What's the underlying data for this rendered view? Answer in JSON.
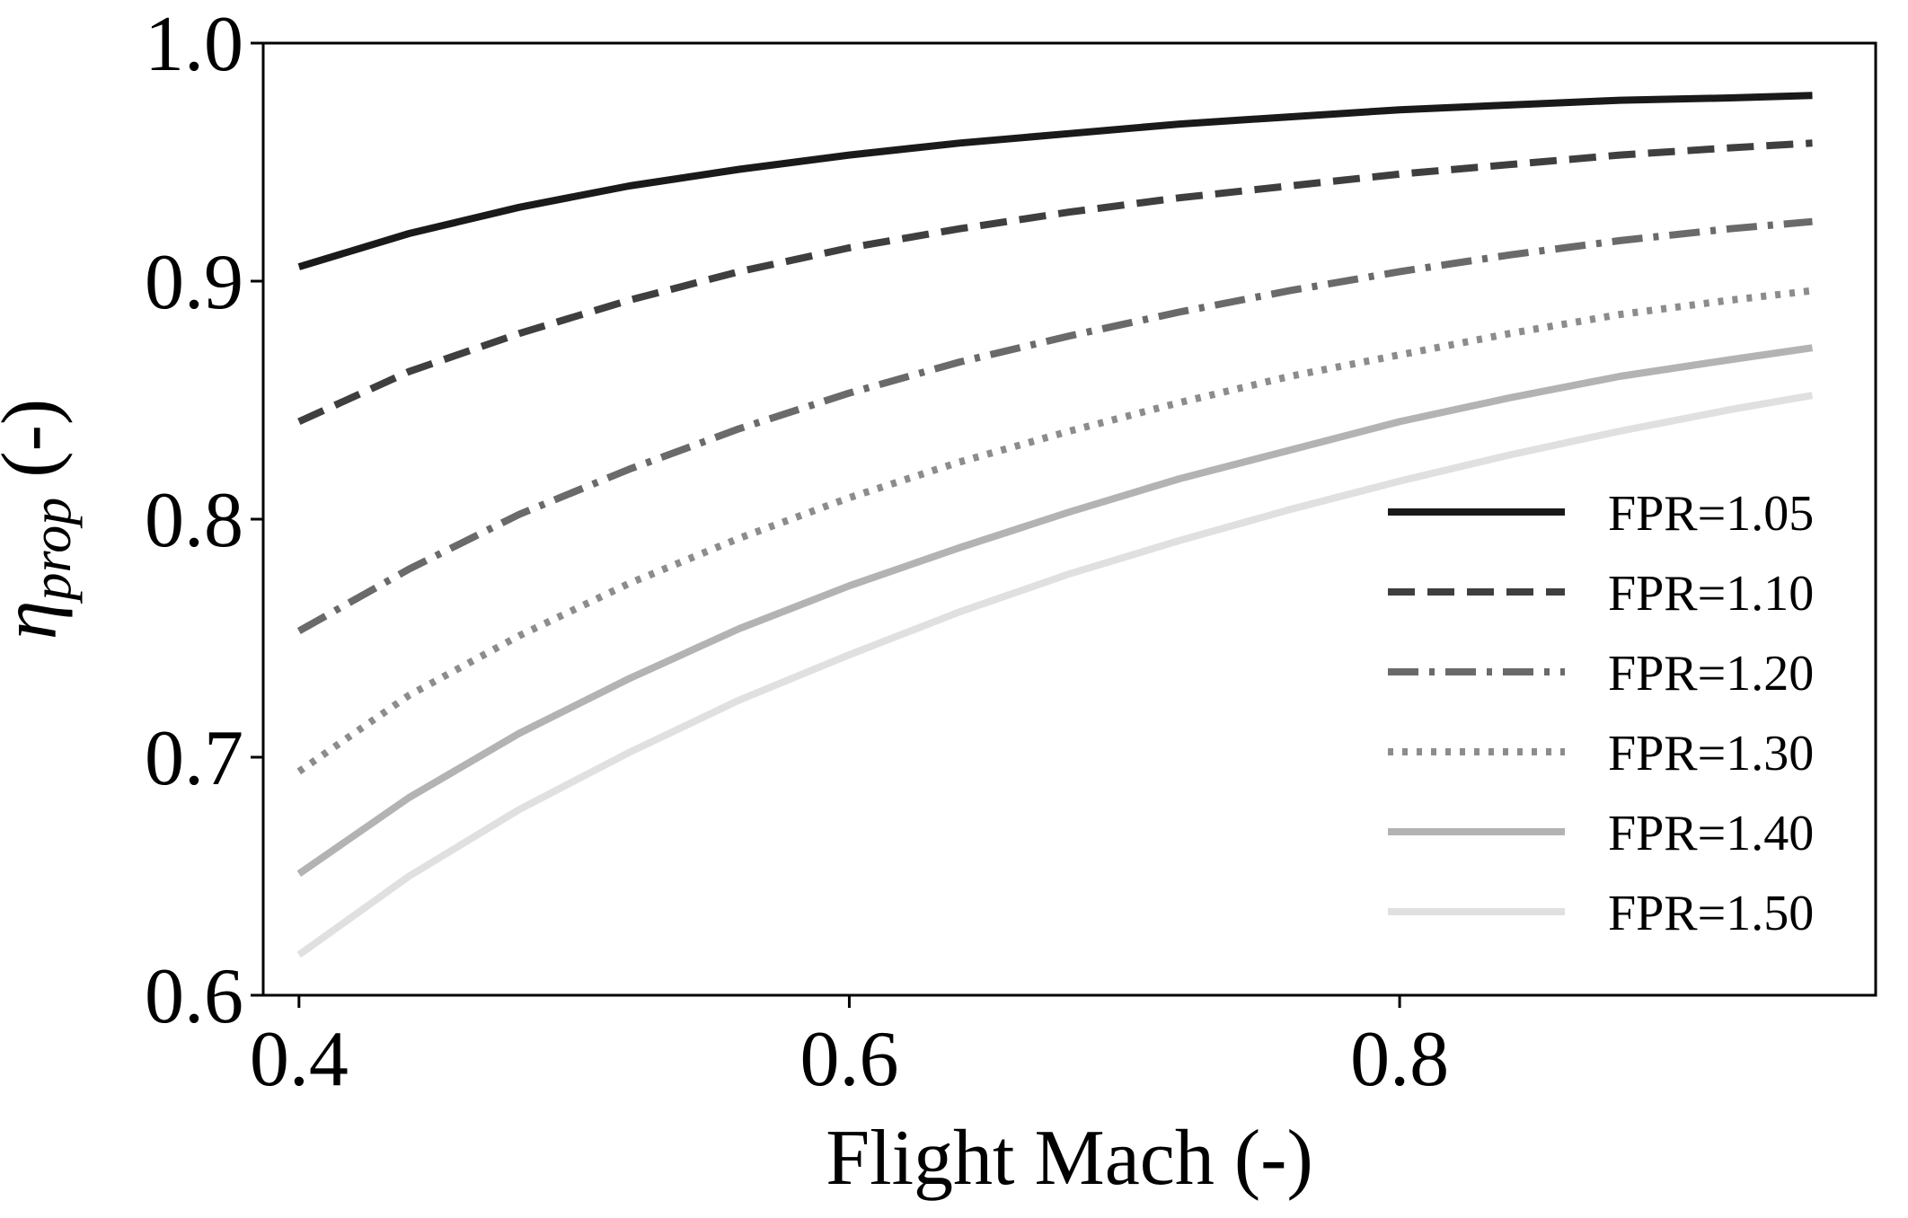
{
  "chart_data": {
    "type": "line",
    "title": "",
    "xlabel": "Flight Mach (-)",
    "ylabel": {
      "main": "η",
      "subscript": "prop",
      "suffix": " (-)"
    },
    "xlim": [
      0.387,
      0.973
    ],
    "ylim": [
      0.6,
      1.0
    ],
    "xticks": [
      "0.4",
      "0.6",
      "0.8"
    ],
    "yticks": [
      "0.6",
      "0.7",
      "0.8",
      "0.9",
      "1.0"
    ],
    "grid": false,
    "legend_position": "lower-right",
    "x": [
      0.4,
      0.44,
      0.48,
      0.52,
      0.56,
      0.6,
      0.64,
      0.68,
      0.72,
      0.76,
      0.8,
      0.84,
      0.88,
      0.92,
      0.95
    ],
    "series": [
      {
        "name": "FPR=1.05",
        "color": "#1a1a1a",
        "style": "solid",
        "values": [
          0.906,
          0.92,
          0.931,
          0.94,
          0.947,
          0.953,
          0.958,
          0.962,
          0.966,
          0.969,
          0.972,
          0.974,
          0.976,
          0.977,
          0.978
        ]
      },
      {
        "name": "FPR=1.10",
        "color": "#3f3f3f",
        "style": "dashed",
        "values": [
          0.841,
          0.862,
          0.878,
          0.892,
          0.904,
          0.914,
          0.922,
          0.929,
          0.935,
          0.94,
          0.945,
          0.949,
          0.953,
          0.956,
          0.958
        ]
      },
      {
        "name": "FPR=1.20",
        "color": "#6a6a6a",
        "style": "dashdot",
        "values": [
          0.753,
          0.779,
          0.802,
          0.821,
          0.838,
          0.853,
          0.866,
          0.877,
          0.887,
          0.896,
          0.904,
          0.911,
          0.917,
          0.922,
          0.925
        ]
      },
      {
        "name": "FPR=1.30",
        "color": "#8c8c8c",
        "style": "dotted",
        "values": [
          0.694,
          0.726,
          0.751,
          0.773,
          0.792,
          0.809,
          0.824,
          0.837,
          0.849,
          0.86,
          0.869,
          0.878,
          0.886,
          0.892,
          0.896
        ]
      },
      {
        "name": "FPR=1.40",
        "color": "#b3b3b3",
        "style": "solid",
        "values": [
          0.651,
          0.683,
          0.71,
          0.733,
          0.754,
          0.772,
          0.788,
          0.803,
          0.817,
          0.829,
          0.841,
          0.851,
          0.86,
          0.867,
          0.872
        ]
      },
      {
        "name": "FPR=1.50",
        "color": "#e0e0e0",
        "style": "solid",
        "values": [
          0.617,
          0.65,
          0.678,
          0.702,
          0.724,
          0.743,
          0.761,
          0.777,
          0.791,
          0.804,
          0.816,
          0.827,
          0.837,
          0.846,
          0.852
        ]
      }
    ]
  }
}
